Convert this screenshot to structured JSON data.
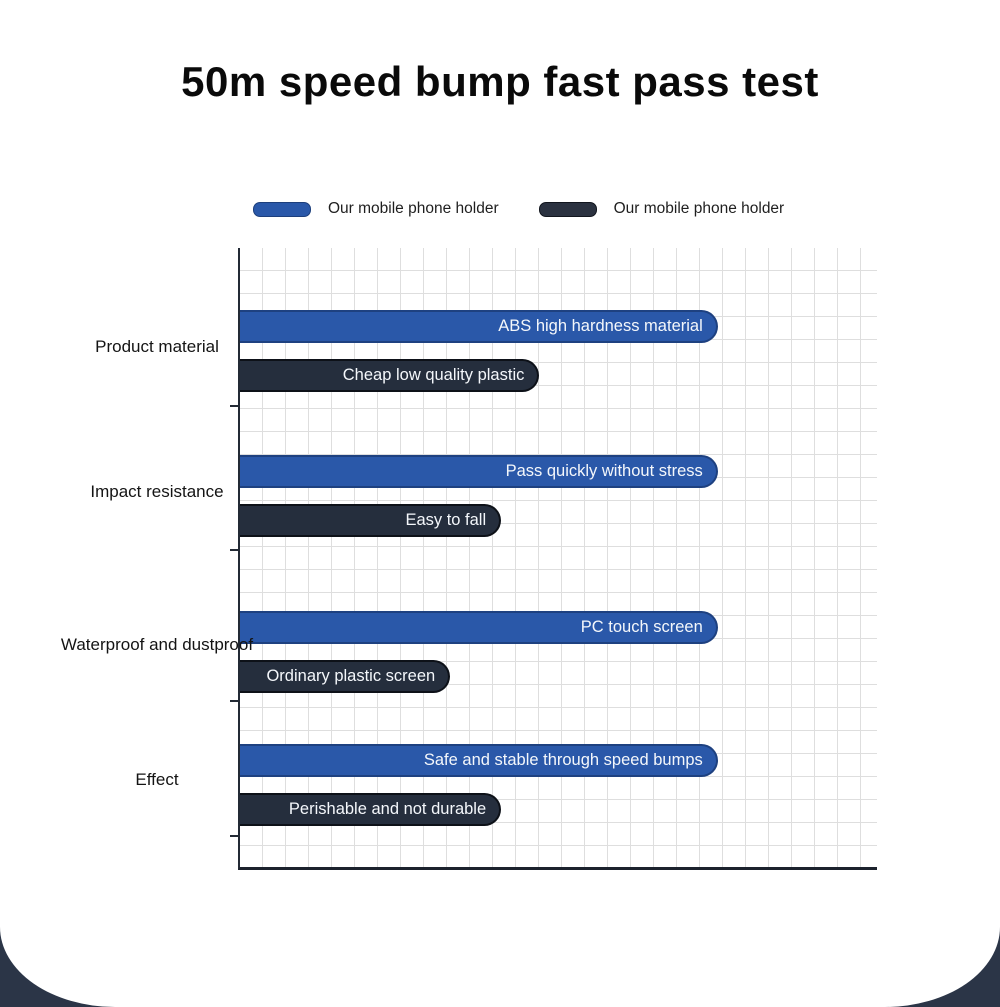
{
  "title": "50m speed bump fast pass test",
  "legend": [
    {
      "label": "Our mobile phone holder",
      "color": "#2a58a9"
    },
    {
      "label": "Our mobile phone holder",
      "color": "#2b3240"
    }
  ],
  "colors": {
    "accent_blue": "#2a58a9",
    "accent_dark": "#252e3d",
    "axis": "#1c222d",
    "grid": "#dedede",
    "page_corner_bg": "#2b3547",
    "bar_text": "#ffffff"
  },
  "chart_data": {
    "type": "bar",
    "orientation": "horizontal",
    "title": "50m speed bump fast pass test",
    "categories": [
      "Product material",
      "Impact resistance",
      "Waterproof and dustproof",
      "Effect"
    ],
    "series": [
      {
        "name": "Our mobile phone holder",
        "color": "#2a58a9",
        "values": [
          75,
          75,
          75,
          75
        ],
        "bar_labels": [
          "ABS high hardness material",
          "Pass quickly without stress",
          "PC touch screen",
          "Safe and stable through speed bumps"
        ]
      },
      {
        "name": "Our mobile phone holder",
        "color": "#252e3d",
        "values": [
          47,
          41,
          33,
          41
        ],
        "bar_labels": [
          "Cheap low quality plastic",
          "Easy to fall",
          "Ordinary plastic screen",
          "Perishable and not durable"
        ]
      }
    ],
    "xlim": [
      0,
      100
    ],
    "value_unit": "percent_of_axis",
    "grid": true,
    "legend_position": "top"
  }
}
